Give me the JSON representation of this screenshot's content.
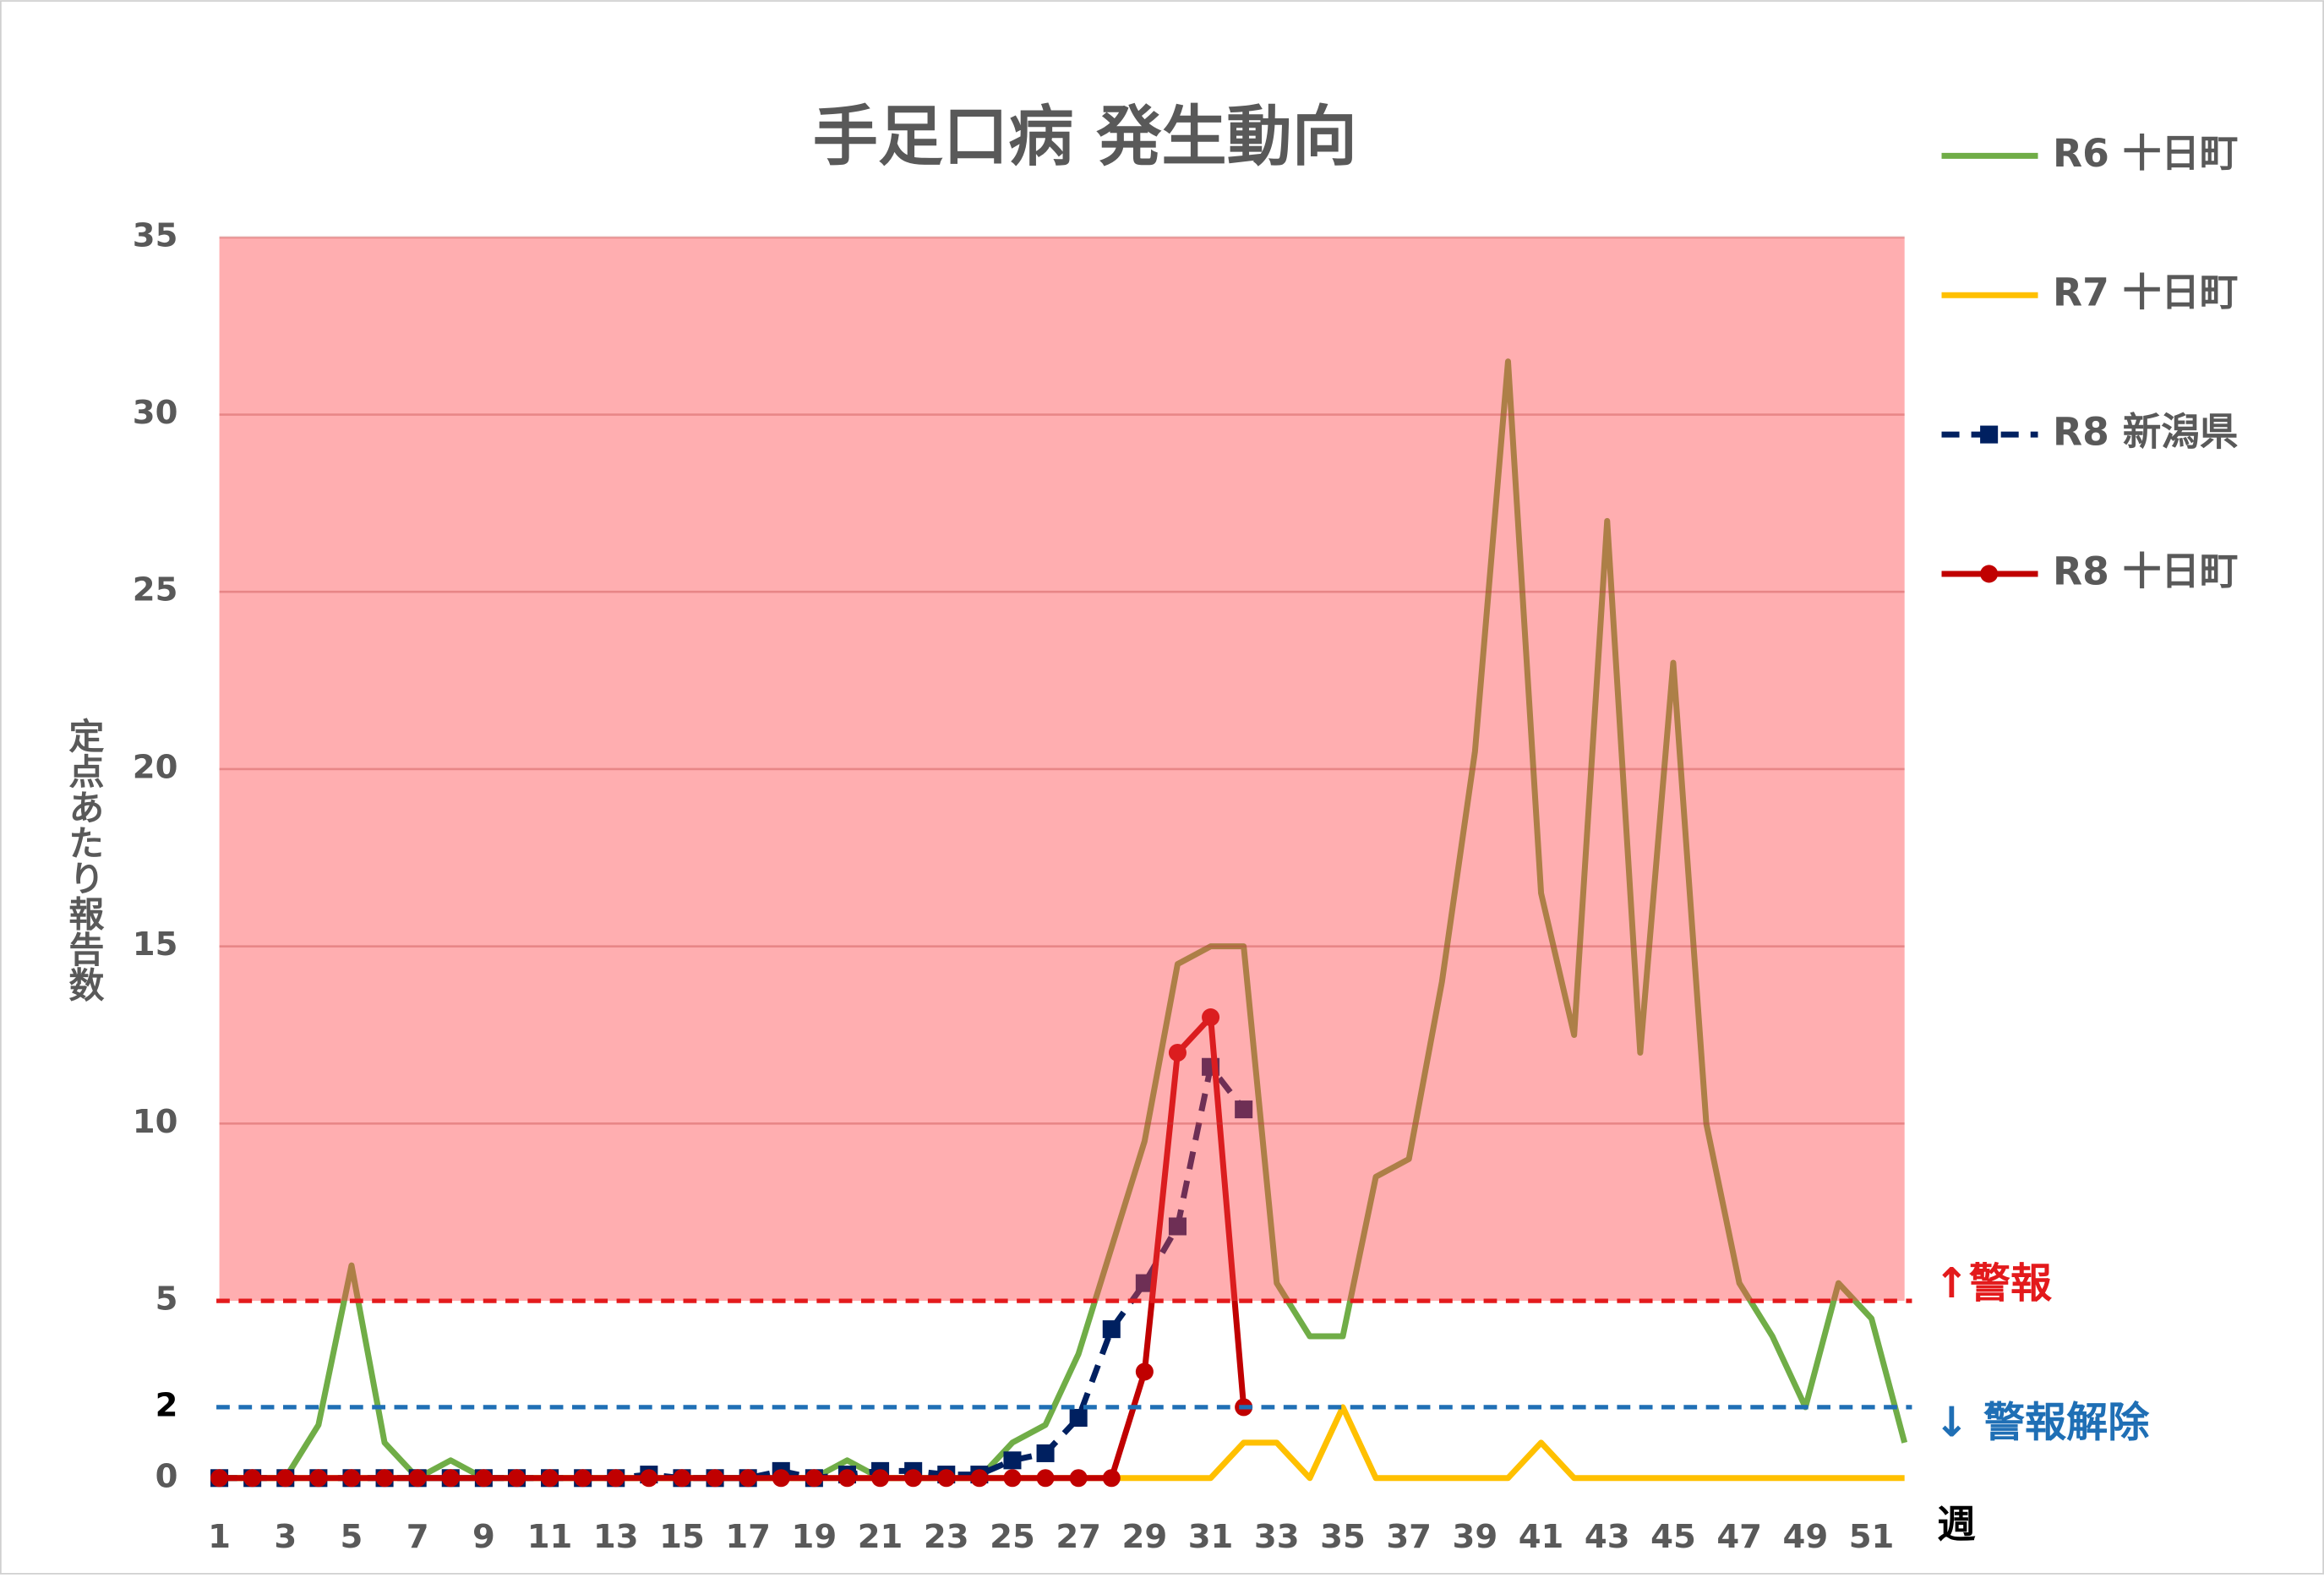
{
  "chart_data": {
    "type": "line",
    "title": "手足口病 発生動向",
    "y_label": "定点あたり報告数",
    "x_label": "週",
    "x": [
      1,
      2,
      3,
      4,
      5,
      6,
      7,
      8,
      9,
      10,
      11,
      12,
      13,
      14,
      15,
      16,
      17,
      18,
      19,
      20,
      21,
      22,
      23,
      24,
      25,
      26,
      27,
      28,
      29,
      30,
      31,
      32,
      33,
      34,
      35,
      36,
      37,
      38,
      39,
      40,
      41,
      42,
      43,
      44,
      45,
      46,
      47,
      48,
      49,
      50,
      51,
      52
    ],
    "xlim": [
      1,
      52
    ],
    "xticks": [
      1,
      3,
      5,
      7,
      9,
      11,
      13,
      15,
      17,
      19,
      21,
      23,
      25,
      27,
      29,
      31,
      33,
      35,
      37,
      39,
      41,
      43,
      45,
      47,
      49,
      51
    ],
    "ylim": [
      0,
      35
    ],
    "yticks": [
      0,
      2,
      5,
      10,
      15,
      20,
      25,
      30,
      35
    ],
    "grid": true,
    "thresholds": [
      {
        "value": 5,
        "label": "↑警報",
        "color": "#e31a1c",
        "shade_above": true
      },
      {
        "value": 2,
        "label": "↓ 警報解除",
        "color": "#1f6fb5"
      }
    ],
    "legend": "right",
    "series": [
      {
        "name": "R6 十日町",
        "color": "#70ad47",
        "dash": false,
        "marker": "none",
        "values": [
          0,
          0,
          0,
          1.5,
          6,
          1,
          0,
          0.5,
          0,
          0,
          0,
          0,
          0,
          0,
          0,
          0,
          0,
          0,
          0,
          0.5,
          0,
          0,
          0,
          0,
          1,
          1.5,
          3.5,
          6.5,
          9.5,
          14.5,
          15,
          15,
          5.5,
          4,
          4,
          8.5,
          9,
          14,
          20.5,
          31.5,
          16.5,
          12.5,
          27,
          12,
          23,
          10,
          5.5,
          4,
          2,
          5.5,
          4.5,
          1
        ]
      },
      {
        "name": "R7 十日町",
        "color": "#ffc000",
        "dash": false,
        "marker": "none",
        "values": [
          0,
          0,
          0,
          0,
          0,
          0,
          0,
          0,
          0,
          0,
          0,
          0,
          0,
          0,
          0,
          0,
          0,
          0,
          0,
          0,
          0,
          0,
          0,
          0,
          0,
          0,
          0,
          0,
          0,
          0,
          0,
          1,
          1,
          0,
          2,
          0,
          0,
          0,
          0,
          0,
          1,
          0,
          0,
          0,
          0,
          0,
          0,
          0,
          0,
          0,
          0,
          0
        ]
      },
      {
        "name": "R8 新潟県",
        "color": "#002060",
        "dash": true,
        "marker": "square",
        "values": [
          0,
          0,
          0,
          0,
          0,
          0,
          0,
          0,
          0,
          0,
          0,
          0,
          0,
          0.1,
          0,
          0,
          0,
          0.2,
          0,
          0.1,
          0.2,
          0.2,
          0.1,
          0.1,
          0.5,
          0.7,
          1.7,
          4.2,
          5.5,
          7.1,
          11.6,
          10.4,
          null,
          null,
          null,
          null,
          null,
          null,
          null,
          null,
          null,
          null,
          null,
          null,
          null,
          null,
          null,
          null,
          null,
          null,
          null,
          null
        ]
      },
      {
        "name": "R8 十日町",
        "color": "#c00000",
        "dash": false,
        "marker": "circle",
        "values": [
          0,
          0,
          0,
          0,
          0,
          0,
          0,
          0,
          0,
          0,
          0,
          0,
          0,
          0,
          0,
          0,
          0,
          0,
          0,
          0,
          0,
          0,
          0,
          0,
          0,
          0,
          0,
          0,
          3,
          12,
          13,
          2,
          null,
          null,
          null,
          null,
          null,
          null,
          null,
          null,
          null,
          null,
          null,
          null,
          null,
          null,
          null,
          null,
          null,
          null,
          null,
          null
        ]
      }
    ]
  }
}
